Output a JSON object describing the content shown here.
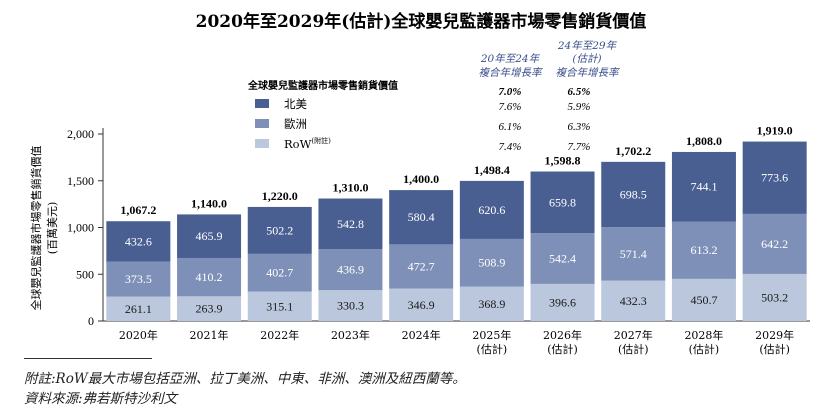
{
  "chart_data": {
    "type": "bar",
    "stacked": true,
    "title": "2020年至2029年(估計)全球嬰兒監護器市場零售銷貨價值",
    "ylabel": "全球嬰兒監護器市場零售銷貨價值",
    "ylabel_unit": "(百萬美元)",
    "ylim": [
      0,
      2000
    ],
    "yticks": [
      "0",
      "500",
      "1,000",
      "1,500",
      "2,000"
    ],
    "categories": [
      {
        "year": "2020年",
        "sub": ""
      },
      {
        "year": "2021年",
        "sub": ""
      },
      {
        "year": "2022年",
        "sub": ""
      },
      {
        "year": "2023年",
        "sub": ""
      },
      {
        "year": "2024年",
        "sub": ""
      },
      {
        "year": "2025年",
        "sub": "(估計)"
      },
      {
        "year": "2026年",
        "sub": "(估計)"
      },
      {
        "year": "2027年",
        "sub": "(估計)"
      },
      {
        "year": "2028年",
        "sub": "(估計)"
      },
      {
        "year": "2029年",
        "sub": "(估計)"
      }
    ],
    "series": [
      {
        "name": "RoW",
        "name_sup": "(附註)",
        "color": "#bac7dc",
        "values": [
          261.1,
          263.9,
          315.1,
          330.3,
          346.9,
          368.9,
          396.6,
          432.3,
          450.7,
          503.2
        ],
        "labels": [
          "261.1",
          "263.9",
          "315.1",
          "330.3",
          "346.9",
          "368.9",
          "396.6",
          "432.3",
          "450.7",
          "503.2"
        ]
      },
      {
        "name": "歐洲",
        "color": "#7f90b8",
        "values": [
          373.5,
          410.2,
          402.7,
          436.9,
          472.7,
          508.9,
          542.4,
          571.4,
          613.2,
          642.2
        ],
        "labels": [
          "373.5",
          "410.2",
          "402.7",
          "436.9",
          "472.7",
          "508.9",
          "542.4",
          "571.4",
          "613.2",
          "642.2"
        ]
      },
      {
        "name": "北美",
        "color": "#495f92",
        "values": [
          432.6,
          465.9,
          502.2,
          542.8,
          580.4,
          620.6,
          659.8,
          698.5,
          744.1,
          773.6
        ],
        "labels": [
          "432.6",
          "465.9",
          "502.2",
          "542.8",
          "580.4",
          "620.6",
          "659.8",
          "698.5",
          "744.1",
          "773.6"
        ]
      }
    ],
    "totals": [
      "1,067.2",
      "1,140.0",
      "1,220.0",
      "1,310.0",
      "1,400.0",
      "1,498.4",
      "1,598.8",
      "1,702.2",
      "1,808.0",
      "1,919.0"
    ],
    "legend_title": "全球嬰兒監護器市場零售銷貨價值",
    "legend_order": [
      "北美",
      "歐洲",
      "RoW"
    ],
    "cagr": {
      "headers": [
        [
          "20年至24年",
          "複合年增長率"
        ],
        [
          "24年至29年",
          "(估計)",
          "複合年增長率"
        ]
      ],
      "total": [
        "7.0%",
        "6.5%"
      ],
      "rows": [
        {
          "series": "北美",
          "values": [
            "7.6%",
            "5.9%"
          ]
        },
        {
          "series": "歐洲",
          "values": [
            "6.1%",
            "6.3%"
          ]
        },
        {
          "series": "RoW",
          "values": [
            "7.4%",
            "7.7%"
          ]
        }
      ]
    }
  },
  "footnote": "附註:RoW最大市場包括亞洲、拉丁美洲、中東、非洲、澳洲及紐西蘭等。",
  "source": "資料來源:弗若斯特沙利文"
}
